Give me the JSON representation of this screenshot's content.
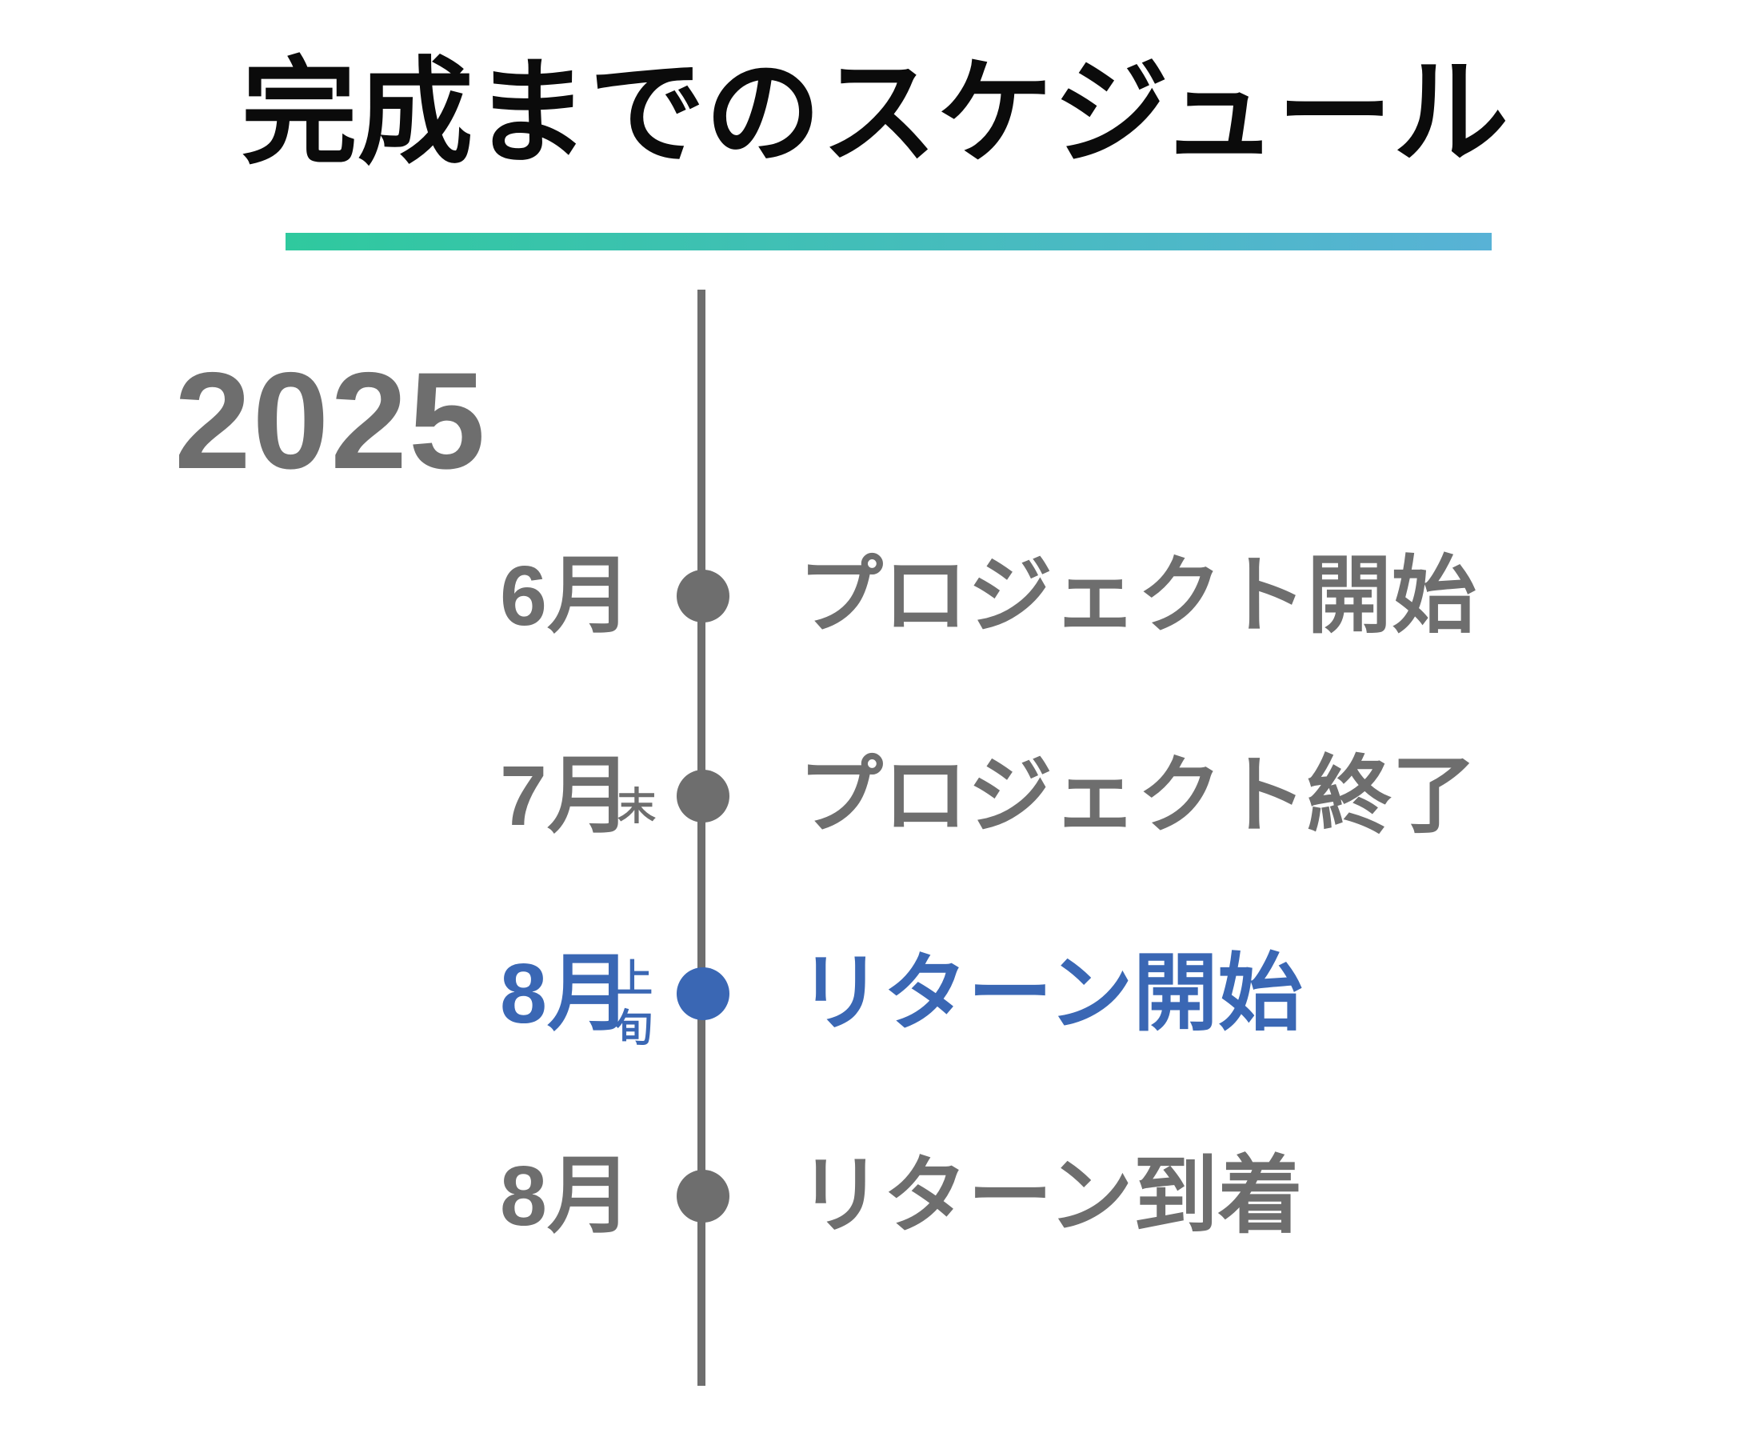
{
  "title": "完成までのスケジュール",
  "year": "2025",
  "colors": {
    "title_text": "#0b0b0b",
    "gray": "#6e6e6e",
    "highlight_blue": "#3a67b4",
    "gradient_start": "#2fc99e",
    "gradient_end": "#58b2d6",
    "background": "#ffffff"
  },
  "timeline": {
    "items": [
      {
        "month": "6月",
        "suffix": "",
        "label": "プロジェクト開始",
        "highlighted": false
      },
      {
        "month": "7月",
        "suffix": "末",
        "label": "プロジェクト終了",
        "highlighted": false
      },
      {
        "month": "8月",
        "suffix": "上旬",
        "suffix_top": "上",
        "suffix_bottom": "旬",
        "label": "リターン開始",
        "highlighted": true
      },
      {
        "month": "8月",
        "suffix": "",
        "label": "リターン到着",
        "highlighted": false
      }
    ]
  }
}
